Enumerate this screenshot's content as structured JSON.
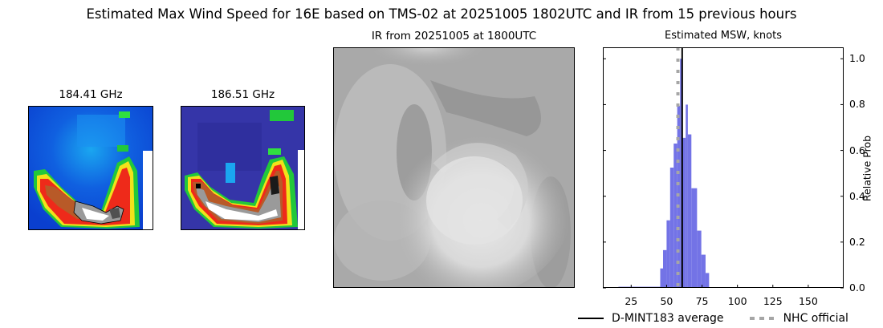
{
  "figure": {
    "suptitle": "Estimated Max Wind Speed for 16E based on TMS-02 at 20251005 1802UTC and IR from 15 previous hours"
  },
  "panels": {
    "mw1": {
      "title": "184.41 GHz",
      "icon": "microwave-image-184"
    },
    "mw2": {
      "title": "186.51 GHz",
      "icon": "microwave-image-186"
    },
    "ir": {
      "title": "IR from 20251005 at 1800UTC",
      "icon": "infrared-satellite-image"
    }
  },
  "chart_data": {
    "type": "bar",
    "title": "Estimated MSW, knots",
    "xlabel": "",
    "ylabel": "Relative Prob",
    "xlim": [
      5,
      175
    ],
    "ylim": [
      0.0,
      1.05
    ],
    "x_ticks": [
      25,
      50,
      75,
      100,
      125,
      150
    ],
    "x_tick_labels": [
      "25",
      "50",
      "75",
      "100",
      "125",
      "150"
    ],
    "y_ticks": [
      0.0,
      0.2,
      0.4,
      0.6,
      0.8,
      1.0
    ],
    "y_tick_labels": [
      "0.0",
      "0.2",
      "0.4",
      "0.6",
      "0.8",
      "1.0"
    ],
    "y_axis_side": "right",
    "grid": false,
    "bar_color": "#7373e6",
    "bins": [
      {
        "x0": 16,
        "x1": 45.5,
        "value": 0.005
      },
      {
        "x0": 45.5,
        "x1": 47.5,
        "value": 0.085
      },
      {
        "x0": 47.5,
        "x1": 50,
        "value": 0.165
      },
      {
        "x0": 50,
        "x1": 52.5,
        "value": 0.295
      },
      {
        "x0": 52.5,
        "x1": 55,
        "value": 0.525
      },
      {
        "x0": 55,
        "x1": 57.5,
        "value": 0.63
      },
      {
        "x0": 57.5,
        "x1": 59.5,
        "value": 0.795
      },
      {
        "x0": 59.5,
        "x1": 60.8,
        "value": 1.0
      },
      {
        "x0": 60.8,
        "x1": 63.5,
        "value": 0.655
      },
      {
        "x0": 63.5,
        "x1": 65,
        "value": 0.8
      },
      {
        "x0": 65,
        "x1": 67.5,
        "value": 0.67
      },
      {
        "x0": 67.5,
        "x1": 71.5,
        "value": 0.435
      },
      {
        "x0": 71.5,
        "x1": 74.5,
        "value": 0.25
      },
      {
        "x0": 74.5,
        "x1": 77.5,
        "value": 0.145
      },
      {
        "x0": 77.5,
        "x1": 80,
        "value": 0.065
      }
    ],
    "lines": [
      {
        "name": "D-MINT183 average",
        "x": 61,
        "style": "solid",
        "color": "#000000"
      },
      {
        "name": "NHC official",
        "x": 58,
        "style": "dotted",
        "color": "#a6a6a6"
      }
    ],
    "legend": {
      "position": "bottom-right",
      "entries": [
        "D-MINT183 average",
        "NHC official"
      ]
    }
  }
}
